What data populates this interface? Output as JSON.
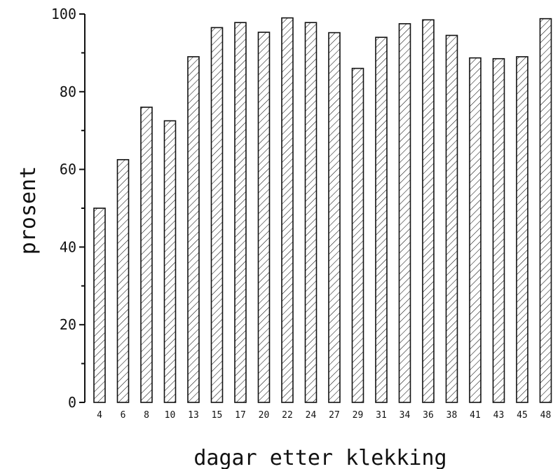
{
  "chart_data": {
    "type": "bar",
    "title": "",
    "xlabel": "dagar etter klekking",
    "ylabel": "prosent",
    "categories": [
      "4",
      "6",
      "8",
      "10",
      "13",
      "15",
      "17",
      "20",
      "22",
      "24",
      "27",
      "29",
      "31",
      "34",
      "36",
      "38",
      "41",
      "43",
      "45",
      "48"
    ],
    "values": [
      50,
      62.5,
      76,
      72.5,
      89,
      96.5,
      97.8,
      95.3,
      99,
      97.8,
      95.2,
      86,
      94,
      97.5,
      98.5,
      94.5,
      88.7,
      88.5,
      89,
      98.8
    ],
    "ylim": [
      0,
      100
    ],
    "yticks": [
      "0",
      "20",
      "40",
      "60",
      "80",
      "100"
    ],
    "grid": false,
    "legend": "none",
    "bar_fill": "hatched",
    "colors": {
      "ink": "#111111",
      "background": "#ffffff"
    }
  }
}
